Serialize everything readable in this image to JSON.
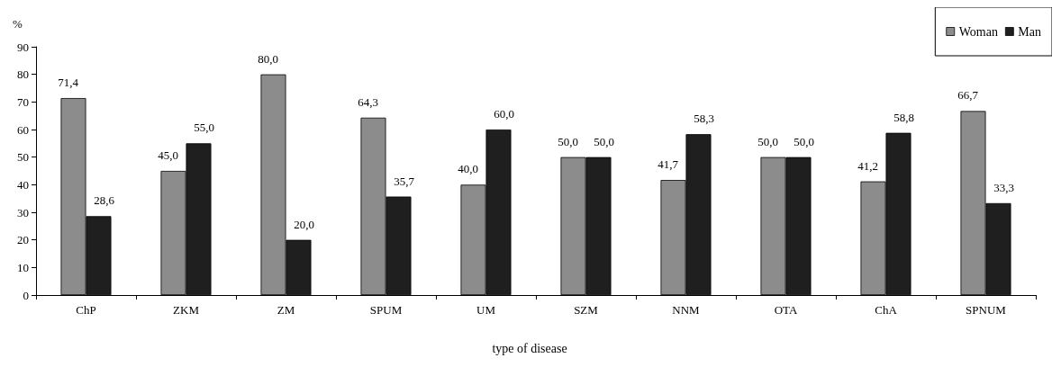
{
  "chart_data": {
    "type": "bar",
    "ylabel": "%",
    "xlabel": "type of disease",
    "categories": [
      "ChP",
      "ZKM",
      "ZM",
      "SPUM",
      "UM",
      "SZM",
      "NNM",
      "OTA",
      "ChA",
      "SPNUM"
    ],
    "series": [
      {
        "name": "Woman",
        "color": "#8c8c8c",
        "values": [
          71.4,
          45.0,
          80.0,
          64.3,
          40.0,
          50.0,
          41.7,
          50.0,
          41.2,
          66.7
        ],
        "value_labels": [
          "71,4",
          "45,0",
          "80,0",
          "64,3",
          "40,0",
          "50,0",
          "41,7",
          "50,0",
          "41,2",
          "66,7"
        ]
      },
      {
        "name": "Man",
        "color": "#1f1f1f",
        "values": [
          28.6,
          55.0,
          20.0,
          35.7,
          60.0,
          50.0,
          58.3,
          50.0,
          58.8,
          33.3
        ],
        "value_labels": [
          "28,6",
          "55,0",
          "20,0",
          "35,7",
          "60,0",
          "50,0",
          "58,3",
          "50,0",
          "58,8",
          "33,3"
        ]
      }
    ],
    "ylim": [
      0,
      90
    ],
    "yticks": [
      0,
      10,
      20,
      30,
      40,
      50,
      60,
      70,
      80,
      90
    ],
    "grid": false,
    "legend": "top right"
  }
}
